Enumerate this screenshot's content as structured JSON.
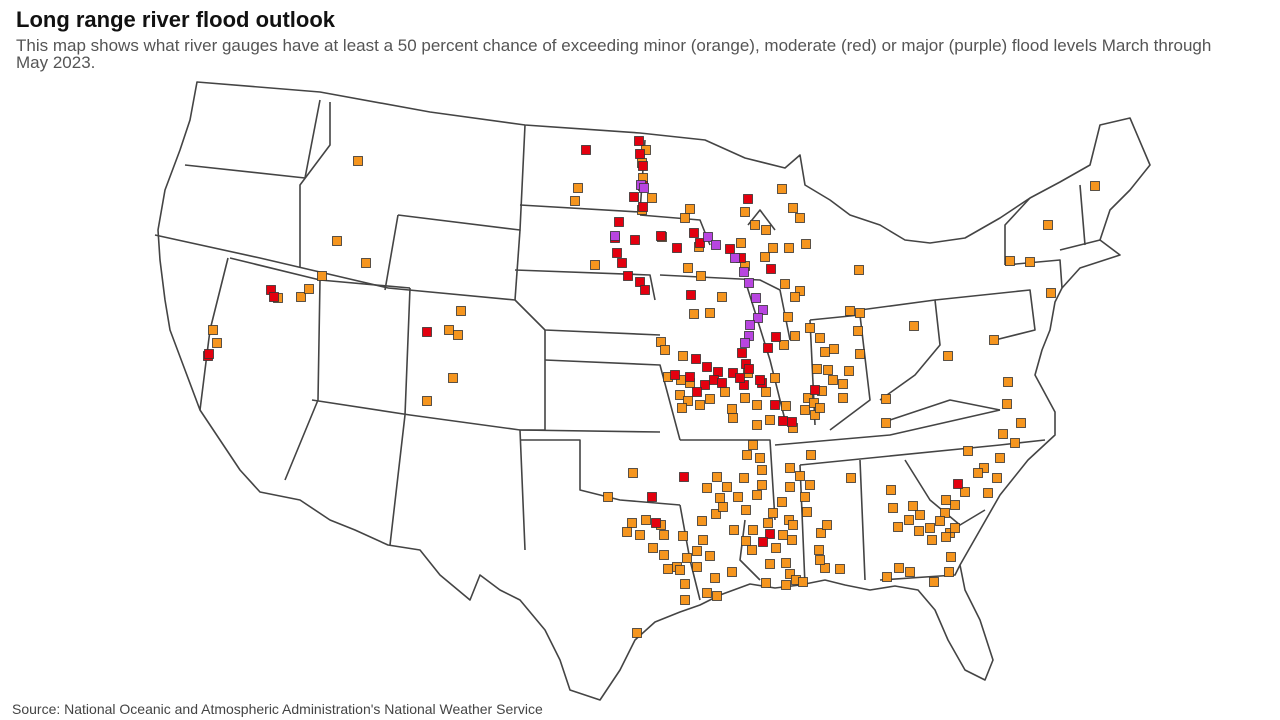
{
  "header": {
    "title": "Long range river flood outlook",
    "subtitle": "This map shows what river gauges have at least a 50 percent chance of exceeding minor (orange), moderate (red) or major (purple) flood levels March through May 2023."
  },
  "footer": {
    "source": "Source: National Oceanic and Atmospheric Administration's National Weather Service"
  },
  "colors": {
    "minor": "#f5951e",
    "moderate": "#e3000f",
    "major": "#b845e0"
  },
  "map_type": "US river gauge flood outlook map",
  "legend": [
    {
      "category": "minor",
      "label": "orange"
    },
    {
      "category": "moderate",
      "label": "red"
    },
    {
      "category": "major",
      "label": "purple"
    }
  ]
}
